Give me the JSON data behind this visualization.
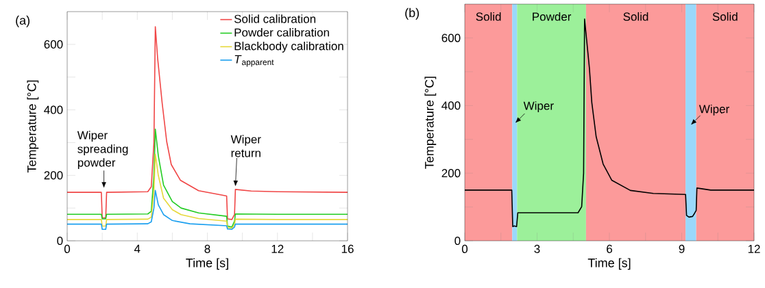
{
  "chart_data": [
    {
      "type": "line",
      "title": "(a)",
      "xlabel": "Time [s]",
      "ylabel": "Temperature [°C]",
      "xlim": [
        0,
        16
      ],
      "ylim": [
        0,
        700
      ],
      "xticks": [
        0,
        {
          "value": 2,
          "label": null
        },
        4,
        {
          "value": 6,
          "label": null
        },
        8,
        {
          "value": 10,
          "label": null
        },
        12,
        {
          "value": 14,
          "label": null
        },
        16
      ],
      "yticks": [
        0,
        {
          "value": 100,
          "label": null
        },
        200,
        {
          "value": 300,
          "label": null
        },
        400,
        {
          "value": 500,
          "label": null
        },
        600
      ],
      "legend": "top right",
      "series": [
        {
          "name": "Solid calibration",
          "color": "#f04545",
          "x": [
            0,
            1.95,
            2.0,
            2.2,
            2.25,
            4.6,
            4.8,
            4.95,
            5.03,
            5.16,
            5.42,
            5.68,
            5.94,
            6.46,
            7.5,
            8.8,
            9.1,
            9.15,
            9.4,
            9.55,
            9.6,
            10.5,
            12,
            16
          ],
          "values": [
            148,
            148,
            70,
            70,
            148,
            150,
            165,
            300,
            654,
            559,
            421,
            303,
            233,
            185,
            153,
            140,
            137,
            67,
            65,
            80,
            157,
            152,
            150,
            148
          ]
        },
        {
          "name": "Powder calibration",
          "color": "#22cc22",
          "x": [
            0,
            1.95,
            2.0,
            2.2,
            2.25,
            4.6,
            4.8,
            4.95,
            5.03,
            5.2,
            5.5,
            6.0,
            6.5,
            7.5,
            9.1,
            9.15,
            9.4,
            9.55,
            9.6,
            12,
            16
          ],
          "values": [
            81,
            81,
            67,
            67,
            81,
            82,
            90,
            200,
            341,
            260,
            170,
            120,
            100,
            85,
            75,
            45,
            42,
            60,
            82,
            81,
            81
          ]
        },
        {
          "name": "Blackbody calibration",
          "color": "#e6d83a",
          "x": [
            0,
            1.95,
            2.0,
            2.2,
            2.25,
            4.6,
            4.8,
            4.95,
            5.03,
            5.2,
            5.5,
            6.0,
            6.5,
            7.5,
            9.1,
            9.15,
            9.4,
            9.55,
            9.6,
            12,
            16
          ],
          "values": [
            65,
            65,
            45,
            45,
            65,
            66,
            72,
            150,
            265,
            200,
            130,
            95,
            80,
            68,
            60,
            40,
            38,
            50,
            66,
            65,
            65
          ]
        },
        {
          "name": "*T*$_{apparent}$",
          "color": "#1a9fef",
          "x": [
            0,
            1.95,
            2.0,
            2.2,
            2.25,
            4.6,
            4.8,
            4.95,
            5.03,
            5.2,
            5.5,
            6.0,
            7.0,
            9.1,
            9.15,
            9.4,
            9.55,
            9.6,
            12,
            16
          ],
          "values": [
            51,
            51,
            35,
            35,
            51,
            52,
            58,
            100,
            154,
            110,
            80,
            62,
            52,
            46,
            36,
            35,
            42,
            51,
            51,
            51
          ]
        }
      ],
      "annotations": [
        "Wiper spreading powder",
        "Wiper return"
      ]
    },
    {
      "type": "line",
      "title": "(b)",
      "xlabel": "Time [s]",
      "ylabel": "Temperature [°C]",
      "xlim": [
        0,
        12
      ],
      "ylim": [
        0,
        700
      ],
      "xticks": [
        0,
        {
          "value": 1.5,
          "label": null
        },
        3,
        {
          "value": 4.5,
          "label": null
        },
        6,
        {
          "value": 7.5,
          "label": null
        },
        9,
        {
          "value": 10.5,
          "label": null
        },
        12
      ],
      "yticks": [
        0,
        {
          "value": 100,
          "label": null
        },
        200,
        {
          "value": 300,
          "label": null
        },
        400,
        {
          "value": 500,
          "label": null
        },
        600
      ],
      "series": [
        {
          "color": "#000000",
          "x": [
            0,
            1.95,
            1.99,
            2.05,
            2.15,
            2.2,
            2.4,
            4.7,
            4.85,
            4.93,
            4.97,
            5.02,
            5.17,
            5.27,
            5.45,
            5.74,
            6.1,
            6.87,
            7.82,
            9.16,
            9.2,
            9.3,
            9.45,
            9.53,
            9.6,
            9.63,
            10.2,
            12
          ],
          "values": [
            150,
            150,
            42,
            44,
            42,
            83,
            83,
            83,
            101,
            200,
            656,
            620,
            511,
            409,
            308,
            227,
            179,
            149,
            140,
            137,
            75,
            70,
            72,
            81,
            90,
            156,
            150,
            150
          ]
        }
      ],
      "bands": [
        {
          "axis": "x",
          "from": 0,
          "to": 1.97,
          "label": "Solid",
          "color": "#fc9a9a"
        },
        {
          "axis": "x",
          "from": 1.97,
          "to": 2.17,
          "color": "#9ad8fb"
        },
        {
          "axis": "x",
          "from": 2.17,
          "to": 5.03,
          "label": "Powder",
          "color": "#9cf09a"
        },
        {
          "axis": "x",
          "from": 5.03,
          "to": 9.16,
          "label": "Solid",
          "color": "#fc9a9a"
        },
        {
          "axis": "x",
          "from": 9.16,
          "to": 9.6,
          "color": "#9ad8fb"
        },
        {
          "axis": "x",
          "from": 9.6,
          "to": 12,
          "label": "Solid",
          "color": "#fc9a9a"
        }
      ],
      "annotations": [
        "Wiper",
        "Wiper"
      ]
    }
  ]
}
